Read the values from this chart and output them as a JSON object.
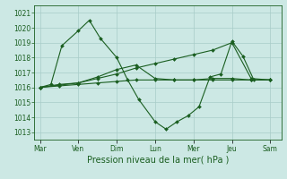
{
  "xlabel": "Pression niveau de la mer( hPa )",
  "background_color": "#cce8e4",
  "grid_color": "#a8ccc8",
  "line_color": "#1a5e20",
  "ylim": [
    1012.5,
    1021.5
  ],
  "yticks": [
    1013,
    1014,
    1015,
    1016,
    1017,
    1018,
    1019,
    1020,
    1021
  ],
  "day_labels": [
    "Mar",
    "Ven",
    "Dim",
    "Lun",
    "Mer",
    "Jeu",
    "Sam"
  ],
  "day_positions": [
    0,
    14,
    28,
    42,
    56,
    70,
    84
  ],
  "xlim": [
    -2,
    88
  ],
  "marker_size": 2,
  "line_width": 0.8,
  "font_size_ticks": 5.5,
  "font_size_xlabel": 7.0,
  "series": [
    {
      "x": [
        0,
        7,
        14,
        21,
        28,
        35,
        42,
        49,
        56,
        63,
        70,
        77,
        84
      ],
      "y": [
        1016.0,
        1016.1,
        1016.2,
        1016.3,
        1016.4,
        1016.5,
        1016.5,
        1016.5,
        1016.5,
        1016.5,
        1016.5,
        1016.5,
        1016.5
      ]
    },
    {
      "x": [
        0,
        4,
        8,
        14,
        18,
        22,
        28,
        32,
        36,
        42,
        46,
        50,
        54,
        58,
        62,
        66,
        70,
        74,
        78,
        84
      ],
      "y": [
        1016.0,
        1016.2,
        1018.8,
        1019.8,
        1020.5,
        1019.3,
        1018.0,
        1016.5,
        1015.2,
        1013.7,
        1013.2,
        1013.7,
        1014.1,
        1014.7,
        1016.7,
        1016.9,
        1019.1,
        1018.1,
        1016.5,
        1016.5
      ]
    },
    {
      "x": [
        0,
        7,
        14,
        21,
        28,
        35,
        42,
        49,
        56,
        63,
        70,
        77,
        84
      ],
      "y": [
        1016.0,
        1016.2,
        1016.3,
        1016.7,
        1017.2,
        1017.5,
        1016.6,
        1016.5,
        1016.5,
        1016.6,
        1016.6,
        1016.5,
        1016.5
      ]
    },
    {
      "x": [
        0,
        7,
        14,
        21,
        28,
        35,
        42,
        49,
        56,
        63,
        70,
        77,
        84
      ],
      "y": [
        1016.0,
        1016.15,
        1016.3,
        1016.6,
        1016.9,
        1017.3,
        1017.6,
        1017.9,
        1018.2,
        1018.5,
        1019.0,
        1016.6,
        1016.5
      ]
    }
  ]
}
